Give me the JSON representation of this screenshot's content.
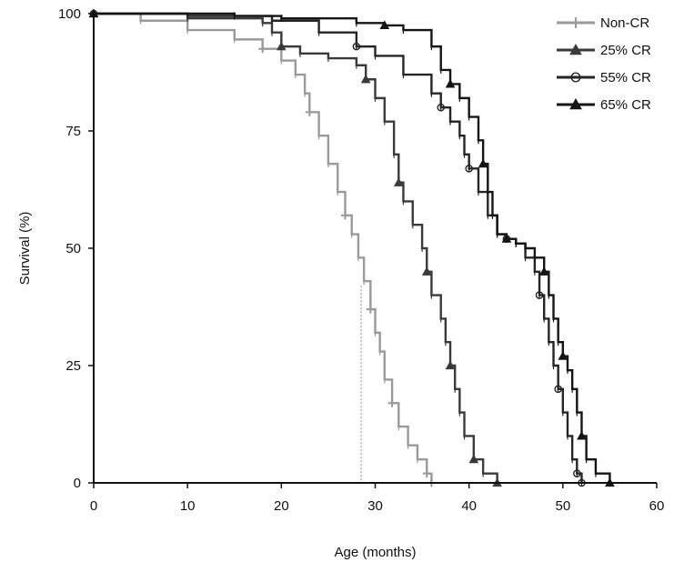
{
  "chart_data": {
    "type": "line",
    "title": "",
    "xlabel": "Age (months)",
    "ylabel": "Survival (%)",
    "xlim": [
      0,
      60
    ],
    "ylim": [
      0,
      100
    ],
    "xticks": [
      0,
      10,
      20,
      30,
      40,
      50,
      60
    ],
    "yticks": [
      0,
      25,
      50,
      75,
      100
    ],
    "grid": false,
    "legend_position": "top-right",
    "reference_line": {
      "x": 28.5,
      "from_y": 0,
      "to_y": 42
    },
    "series": [
      {
        "name": "Non-CR",
        "color": "#9a9a9a",
        "marker": "cross",
        "points": [
          [
            0,
            100
          ],
          [
            5,
            98.5
          ],
          [
            10,
            96.5
          ],
          [
            15,
            94.5
          ],
          [
            18,
            92.5
          ],
          [
            20,
            90
          ],
          [
            21.5,
            87
          ],
          [
            22.5,
            83
          ],
          [
            23,
            79
          ],
          [
            24,
            74
          ],
          [
            25,
            68
          ],
          [
            26,
            62
          ],
          [
            26.8,
            57
          ],
          [
            27.5,
            53
          ],
          [
            28.2,
            48
          ],
          [
            28.8,
            43
          ],
          [
            29.5,
            37
          ],
          [
            30,
            32
          ],
          [
            30.5,
            28
          ],
          [
            31,
            22
          ],
          [
            31.8,
            17
          ],
          [
            32.5,
            12
          ],
          [
            33.5,
            8
          ],
          [
            34.5,
            5
          ],
          [
            35.5,
            2
          ],
          [
            36,
            0
          ]
        ]
      },
      {
        "name": "25% CR",
        "color": "#3a3a3a",
        "marker": "triangle",
        "points": [
          [
            0,
            100
          ],
          [
            10,
            99
          ],
          [
            18,
            98
          ],
          [
            19,
            96
          ],
          [
            20,
            93
          ],
          [
            22,
            91.5
          ],
          [
            25,
            90.5
          ],
          [
            28,
            89
          ],
          [
            29,
            86
          ],
          [
            30,
            82
          ],
          [
            31,
            77
          ],
          [
            32,
            70
          ],
          [
            32.5,
            64
          ],
          [
            33,
            60
          ],
          [
            34,
            55
          ],
          [
            35,
            50
          ],
          [
            35.5,
            45
          ],
          [
            36,
            40
          ],
          [
            37,
            35
          ],
          [
            37.5,
            30
          ],
          [
            38,
            25
          ],
          [
            38.5,
            20
          ],
          [
            39,
            15
          ],
          [
            39.5,
            10
          ],
          [
            40.5,
            5
          ],
          [
            41.5,
            2
          ],
          [
            43,
            0
          ]
        ]
      },
      {
        "name": "55% CR",
        "color": "#252525",
        "marker": "circle",
        "points": [
          [
            0,
            100
          ],
          [
            10,
            99.5
          ],
          [
            19,
            98.5
          ],
          [
            24,
            96
          ],
          [
            28,
            93
          ],
          [
            30,
            91
          ],
          [
            33,
            87
          ],
          [
            36,
            83
          ],
          [
            37,
            80
          ],
          [
            38,
            77
          ],
          [
            39,
            74
          ],
          [
            39.5,
            70
          ],
          [
            40,
            67
          ],
          [
            41,
            62
          ],
          [
            42,
            57
          ],
          [
            43,
            53
          ],
          [
            44,
            52
          ],
          [
            45,
            51
          ],
          [
            46,
            48
          ],
          [
            47,
            45
          ],
          [
            47.5,
            40
          ],
          [
            48,
            35
          ],
          [
            48.5,
            30
          ],
          [
            49,
            25
          ],
          [
            49.5,
            20
          ],
          [
            50,
            15
          ],
          [
            50.5,
            10
          ],
          [
            51,
            5
          ],
          [
            51.5,
            2
          ],
          [
            52,
            0
          ]
        ]
      },
      {
        "name": "65% CR",
        "color": "#151515",
        "marker": "triangle",
        "points": [
          [
            0,
            100
          ],
          [
            15,
            99.5
          ],
          [
            20,
            99
          ],
          [
            28,
            98
          ],
          [
            31,
            97.5
          ],
          [
            33,
            96.5
          ],
          [
            36,
            93
          ],
          [
            37,
            88
          ],
          [
            38,
            85
          ],
          [
            39,
            82
          ],
          [
            40,
            78
          ],
          [
            41,
            73
          ],
          [
            41.5,
            68
          ],
          [
            42,
            62
          ],
          [
            42.5,
            57
          ],
          [
            43,
            53
          ],
          [
            44,
            52
          ],
          [
            45,
            51
          ],
          [
            46,
            50
          ],
          [
            47,
            48
          ],
          [
            48,
            45
          ],
          [
            48.5,
            40
          ],
          [
            49,
            35
          ],
          [
            49.5,
            30
          ],
          [
            50,
            27
          ],
          [
            50.5,
            24
          ],
          [
            51,
            20
          ],
          [
            51.5,
            15
          ],
          [
            52,
            10
          ],
          [
            52.5,
            5
          ],
          [
            53.5,
            2
          ],
          [
            55,
            0
          ]
        ]
      }
    ]
  }
}
